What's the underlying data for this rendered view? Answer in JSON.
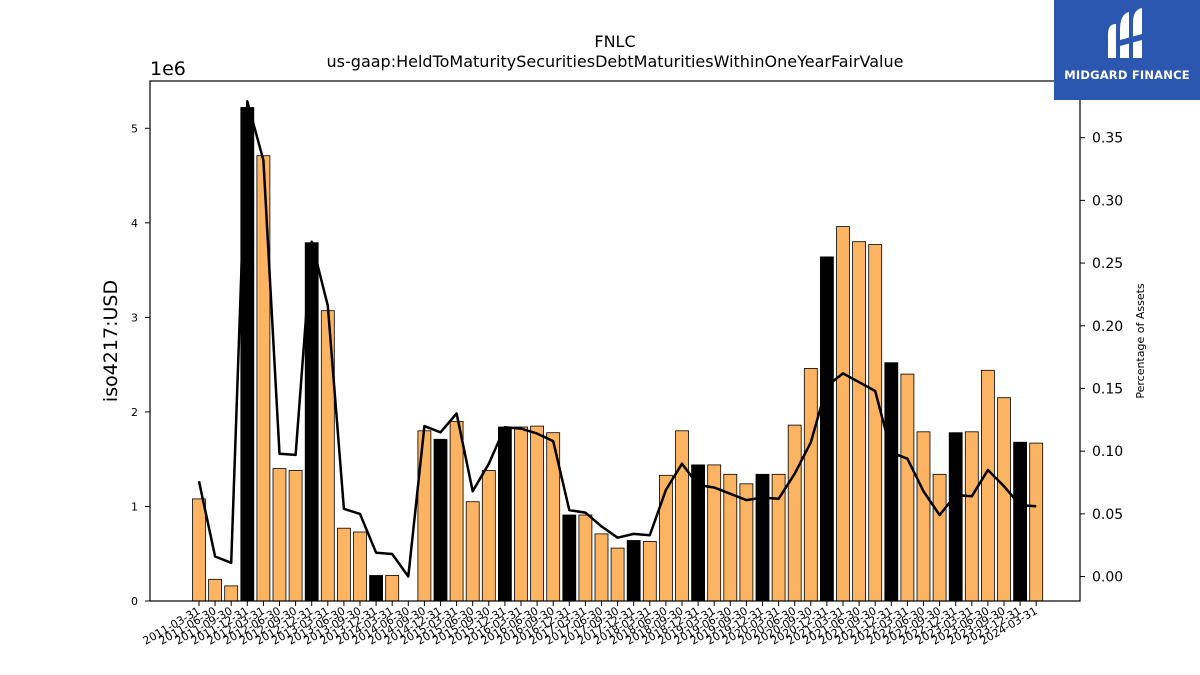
{
  "header": {
    "ticker": "FNLC",
    "concept": "us-gaap:HeldToMaturitySecuritiesDebtMaturitiesWithinOneYearFairValue"
  },
  "logo": {
    "name": "MIDGARD FINANCE"
  },
  "colors": {
    "bar": "#fdb462",
    "bar_q4": "#000000",
    "line": "#000000",
    "logo_bg": "#2b57b0"
  },
  "chart_data": {
    "type": "bar",
    "title": "FNLC\nus-gaap:HeldToMaturitySecuritiesDebtMaturitiesWithinOneYearFairValue",
    "ylabel": "iso4217:USD",
    "y_offset_label": "1e6",
    "y2label": "Percentage of Assets",
    "ylim": [
      0,
      5500000
    ],
    "y2lim": [
      -0.0195,
      0.3952
    ],
    "yticks": [
      0,
      1,
      2,
      3,
      4,
      5
    ],
    "y2ticks": [
      "0.00",
      "0.05",
      "0.10",
      "0.15",
      "0.20",
      "0.25",
      "0.30",
      "0.35"
    ],
    "categories": [
      "2011-03-31",
      "2011-06-30",
      "2011-09-30",
      "2011-12-31",
      "2012-03-31",
      "2012-06-30",
      "2012-09-30",
      "2012-12-31",
      "2013-03-31",
      "2013-06-30",
      "2013-09-30",
      "2013-12-31",
      "2014-03-31",
      "2014-06-30",
      "2014-09-30",
      "2014-12-31",
      "2015-03-31",
      "2015-06-30",
      "2015-09-30",
      "2015-12-31",
      "2016-03-31",
      "2016-06-30",
      "2016-09-30",
      "2016-12-31",
      "2017-03-31",
      "2017-06-30",
      "2017-09-30",
      "2017-12-31",
      "2018-03-31",
      "2018-06-30",
      "2018-09-30",
      "2018-12-31",
      "2019-03-31",
      "2019-06-30",
      "2019-09-30",
      "2019-12-31",
      "2020-03-31",
      "2020-06-30",
      "2020-09-30",
      "2020-12-31",
      "2021-03-31",
      "2021-06-30",
      "2021-09-30",
      "2021-12-31",
      "2022-03-31",
      "2022-06-30",
      "2022-09-30",
      "2022-12-31",
      "2023-03-31",
      "2023-06-30",
      "2023-09-30",
      "2023-12-31",
      "2024-03-31"
    ],
    "tick_labels": [
      "2011-03-31",
      "2011-06-30",
      "2011-09-30",
      "2011-12-31",
      "2012-03-31",
      "2012-06-30",
      "2012-09-30",
      "2012-12-31",
      "2013-03-31",
      "2013-06-30",
      "2013-09-30",
      "2013-12-31",
      "2014-03-31",
      "2014-06-30",
      "2014-09-30",
      "2014-12-31",
      "2015-03-31",
      "2015-06-30",
      "2015-09-30",
      "2015-12-31",
      "2016-03-31",
      "2016-06-30",
      "2016-09-30",
      "2016-12-31",
      "2017-03-31",
      "2017-06-30",
      "2017-09-30",
      "2017-12-31",
      "2018-03-31",
      "2018-06-30",
      "2018-09-30",
      "2018-12-31",
      "2019-03-31",
      "2019-06-30",
      "2019-09-30",
      "2019-12-31",
      "2020-03-31",
      "2020-06-30",
      "2020-09-30",
      "2020-12-31",
      "2021-03-31",
      "2021-06-30",
      "2021-09-30",
      "2021-12-31",
      "2022-03-31",
      "2022-06-30",
      "2022-09-30",
      "2022-12-31",
      "2023-03-31",
      "2023-06-30",
      "2023-09-30",
      "2023-12-31",
      "2024-03-31"
    ],
    "values": [
      1080000,
      230000,
      160000,
      5220000,
      4710000,
      1400000,
      1380000,
      3790000,
      3070000,
      770000,
      730000,
      270000,
      270000,
      0,
      1800000,
      1710000,
      1900000,
      1050000,
      1380000,
      1840000,
      1840000,
      1850000,
      1780000,
      910000,
      910000,
      710000,
      560000,
      640000,
      630000,
      1330000,
      1800000,
      1440000,
      1440000,
      1340000,
      1240000,
      1340000,
      1340000,
      1860000,
      2460000,
      3640000,
      3960000,
      3800000,
      3770000,
      2520000,
      2400000,
      1790000,
      1340000,
      1780000,
      1790000,
      2440000,
      2150000,
      1680000,
      1670000
    ],
    "pct_of_assets": [
      0.076,
      0.016,
      0.011,
      0.379,
      0.332,
      0.098,
      0.097,
      0.267,
      0.216,
      0.054,
      0.05,
      0.019,
      0.018,
      0.0,
      0.12,
      0.115,
      0.13,
      0.068,
      0.09,
      0.119,
      0.118,
      0.114,
      0.108,
      0.053,
      0.051,
      0.04,
      0.031,
      0.034,
      0.033,
      0.069,
      0.09,
      0.073,
      0.071,
      0.066,
      0.061,
      0.063,
      0.062,
      0.082,
      0.107,
      0.152,
      0.162,
      0.155,
      0.148,
      0.099,
      0.094,
      0.068,
      0.049,
      0.065,
      0.064,
      0.085,
      0.072,
      0.057,
      0.056
    ],
    "grid": false,
    "legend": "none"
  }
}
